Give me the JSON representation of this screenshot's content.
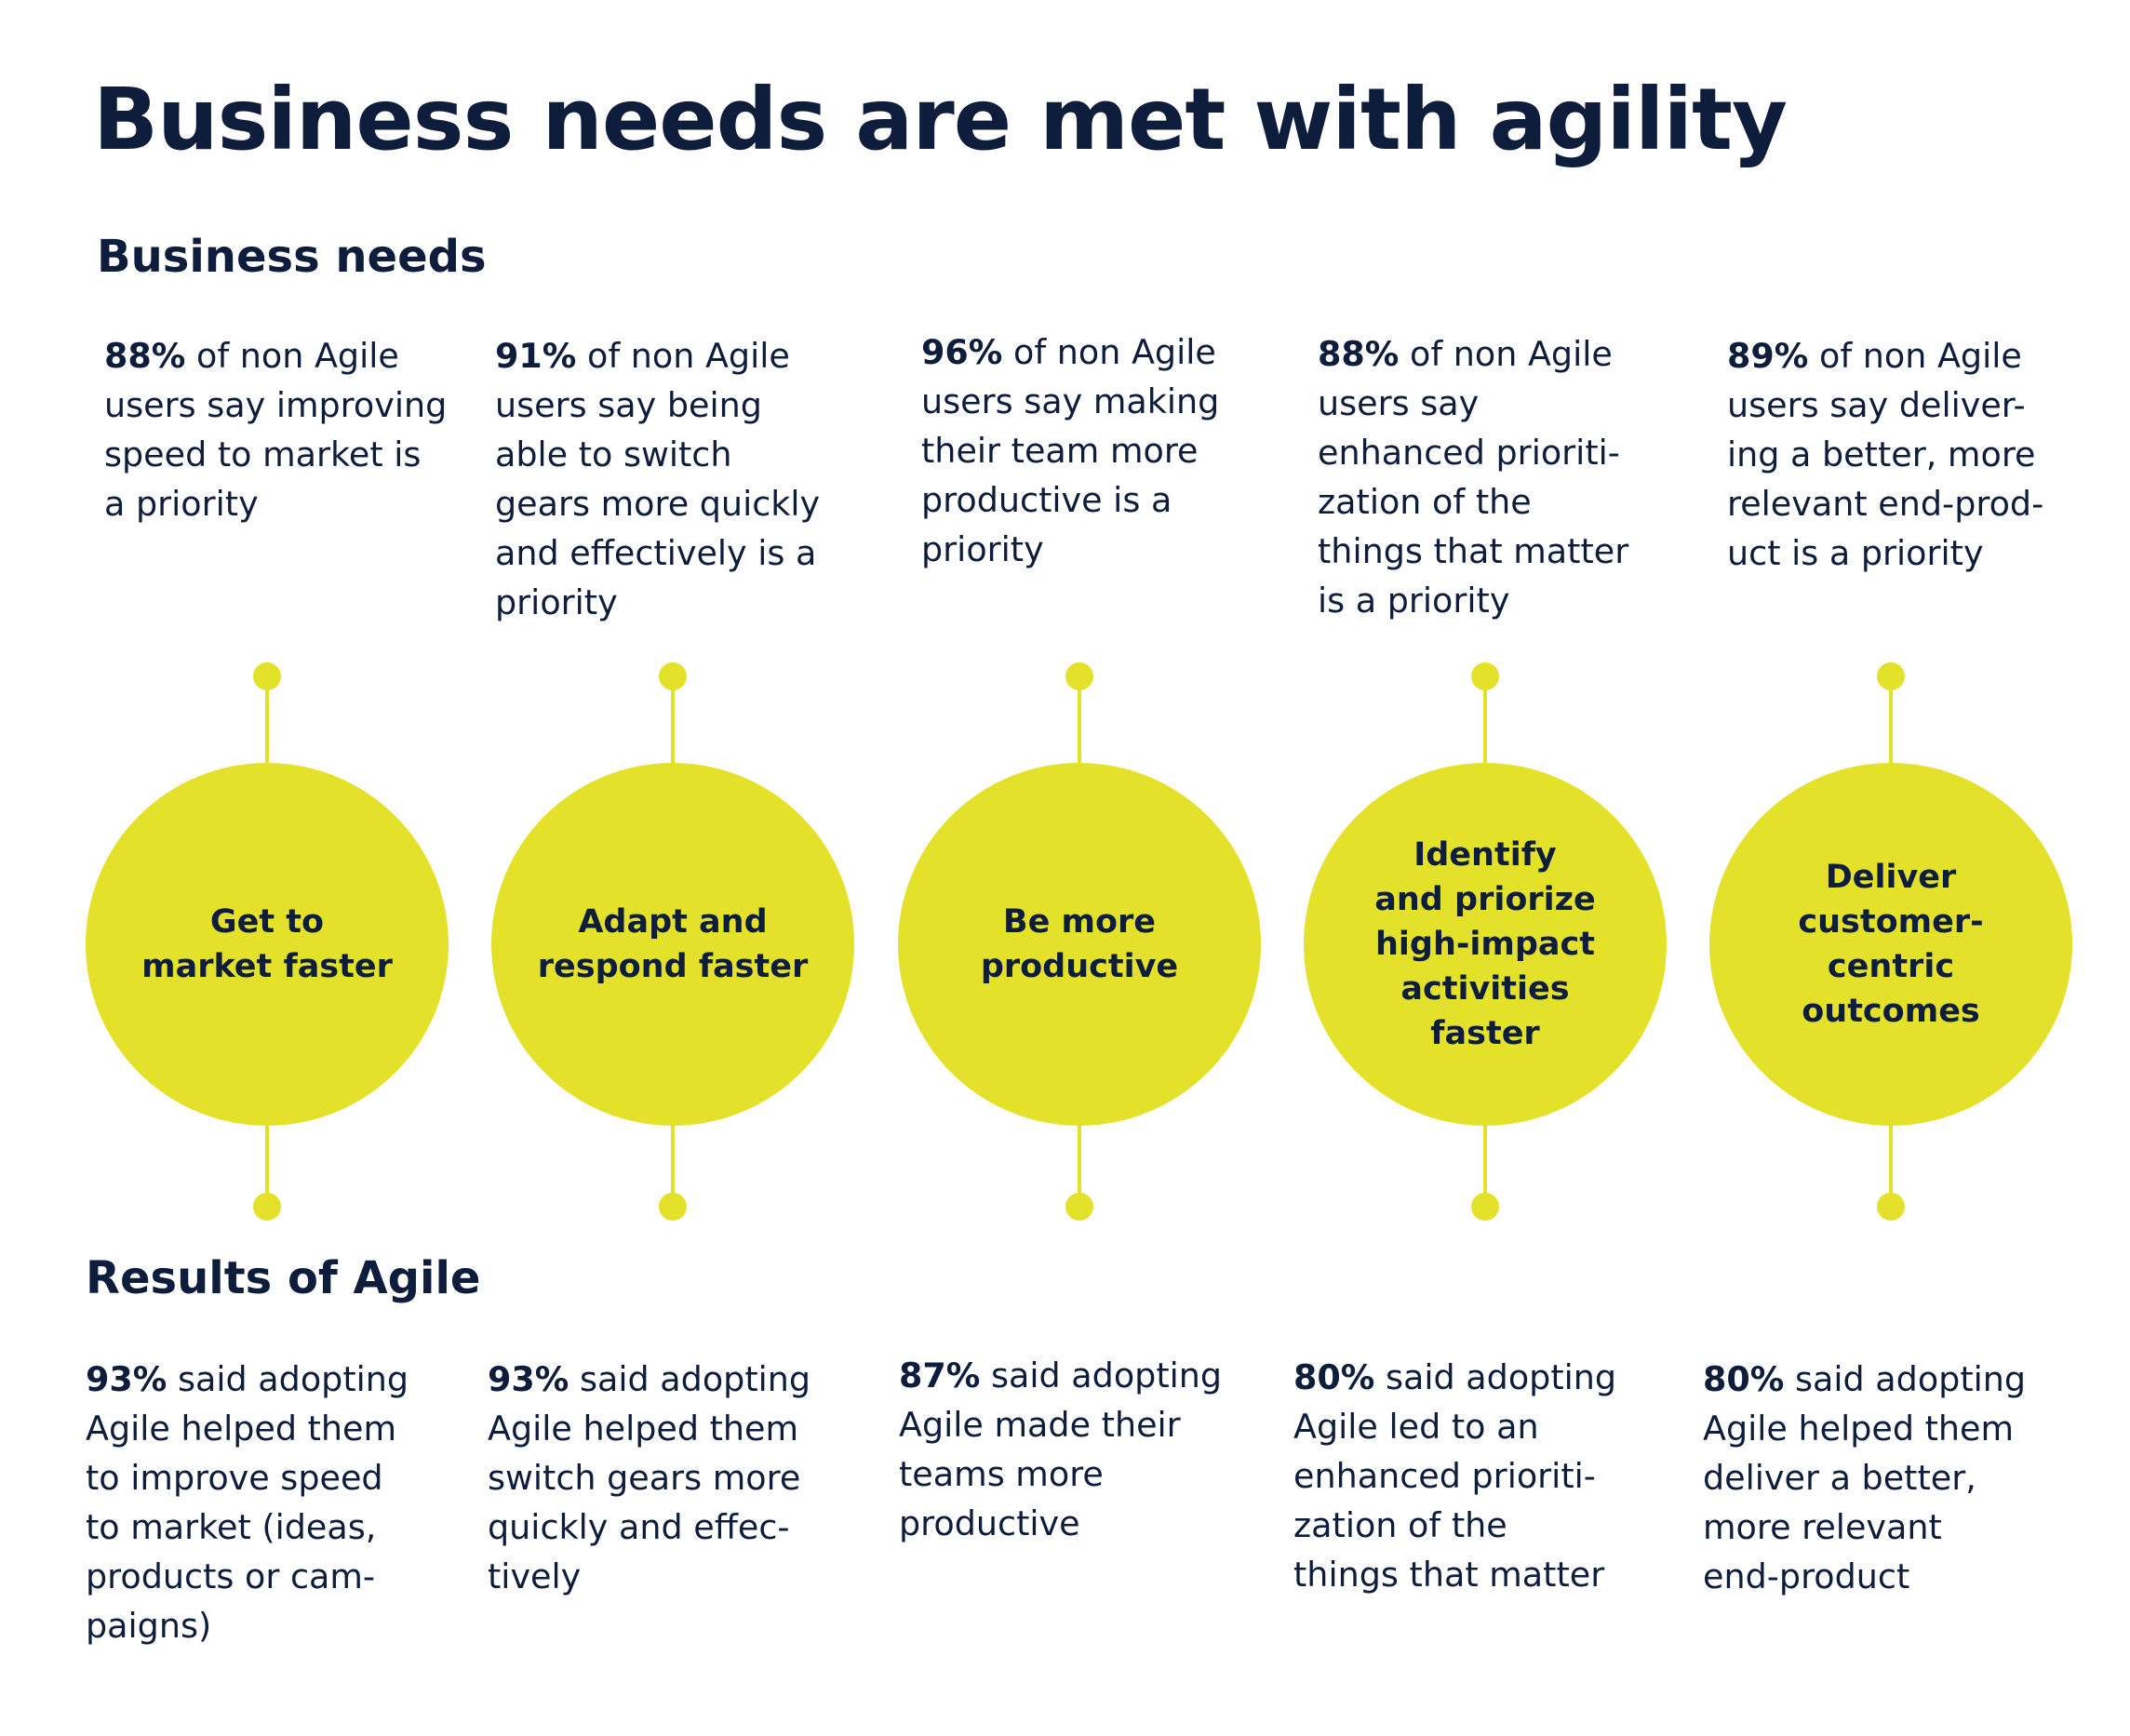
{
  "title": "Business needs are met with agility",
  "needs_heading": "Business needs",
  "results_heading": "Results of Agile",
  "pillars": [
    {
      "label": [
        "Get to",
        "market faster"
      ],
      "need_pct": "88%",
      "need_text": [
        "of non Agile",
        "users say improving",
        "speed to market is",
        "a priority"
      ],
      "result_pct": "93%",
      "result_text": [
        "said adopting",
        "Agile helped them",
        "to improve speed",
        "to market (ideas,",
        "products or cam-",
        "paigns)"
      ]
    },
    {
      "label": [
        "Adapt and",
        "respond faster"
      ],
      "need_pct": "91%",
      "need_text": [
        "of non Agile",
        "users say being",
        "able to switch",
        "gears more quickly",
        "and effectively is a",
        "priority"
      ],
      "result_pct": "93%",
      "result_text": [
        "said adopting",
        "Agile helped them",
        "switch gears more",
        "quickly and effec-",
        "tively"
      ]
    },
    {
      "label": [
        "Be more",
        "productive"
      ],
      "need_pct": "96%",
      "need_text": [
        "of non Agile",
        "users say making",
        "their team more",
        "productive is a",
        "priority"
      ],
      "result_pct": "87%",
      "result_text": [
        "said adopting",
        "Agile made their",
        "teams more",
        "productive"
      ]
    },
    {
      "label": [
        "Identify",
        "and priorize",
        "high-impact",
        "activities",
        "faster"
      ],
      "need_pct": "88%",
      "need_text": [
        "of non Agile",
        "users say",
        "enhanced prioriti-",
        "zation of the",
        "things that matter",
        "is a priority"
      ],
      "result_pct": "80%",
      "result_text": [
        "said adopting",
        "Agile led to an",
        "enhanced prioriti-",
        "zation of the",
        "things that matter"
      ]
    },
    {
      "label": [
        "Deliver",
        "customer-",
        "centric",
        "outcomes"
      ],
      "need_pct": "89%",
      "need_text": [
        "of non Agile",
        "users say deliver-",
        "ing a better, more",
        "relevant end-prod-",
        "uct is a priority"
      ],
      "result_pct": "80%",
      "result_text": [
        "said adopting",
        "Agile helped them",
        "deliver a better,",
        "more relevant",
        "end-product"
      ]
    }
  ]
}
